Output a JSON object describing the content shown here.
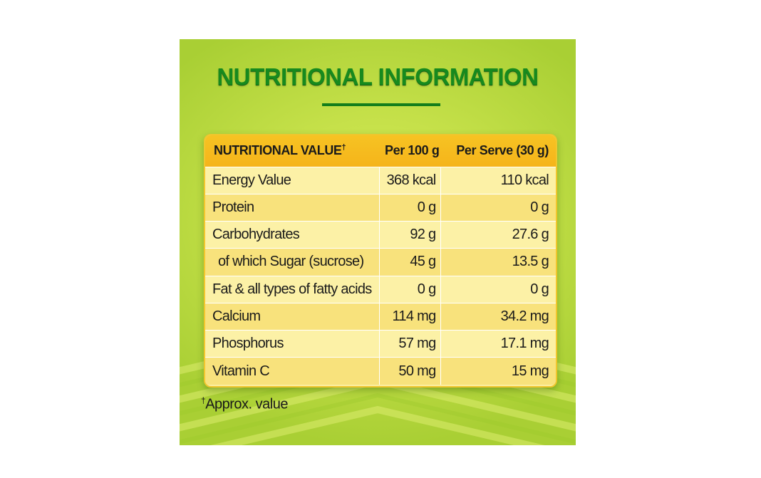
{
  "title": "NUTRITIONAL INFORMATION",
  "table": {
    "header": {
      "name": "NUTRITIONAL VALUE",
      "name_mark": "†",
      "per_100g": "Per 100 g",
      "per_serve": "Per Serve (30 g)"
    },
    "rows": [
      {
        "name": "Energy Value",
        "per_100g": "368 kcal",
        "per_serve": "110 kcal"
      },
      {
        "name": "Protein",
        "per_100g": "0 g",
        "per_serve": "0 g"
      },
      {
        "name": "Carbohydrates",
        "per_100g": "92 g",
        "per_serve": "27.6 g"
      },
      {
        "name": "of which Sugar (sucrose)",
        "per_100g": "45 g",
        "per_serve": "13.5 g"
      },
      {
        "name": "Fat & all types of fatty acids",
        "per_100g": "0 g",
        "per_serve": "0 g"
      },
      {
        "name": "Calcium",
        "per_100g": "114 mg",
        "per_serve": "34.2 mg"
      },
      {
        "name": "Phosphorus",
        "per_100g": "57 mg",
        "per_serve": "17.1 mg"
      },
      {
        "name": "Vitamin C",
        "per_100g": "50 mg",
        "per_serve": "15 mg"
      }
    ]
  },
  "footnote": {
    "mark": "†",
    "text": "Approx. value"
  },
  "colors": {
    "title": "#178a1e",
    "header": "#f5b41a",
    "row_light": "#fcf1a6",
    "row_dark": "#f8e27c",
    "background": "#c6e14a"
  }
}
